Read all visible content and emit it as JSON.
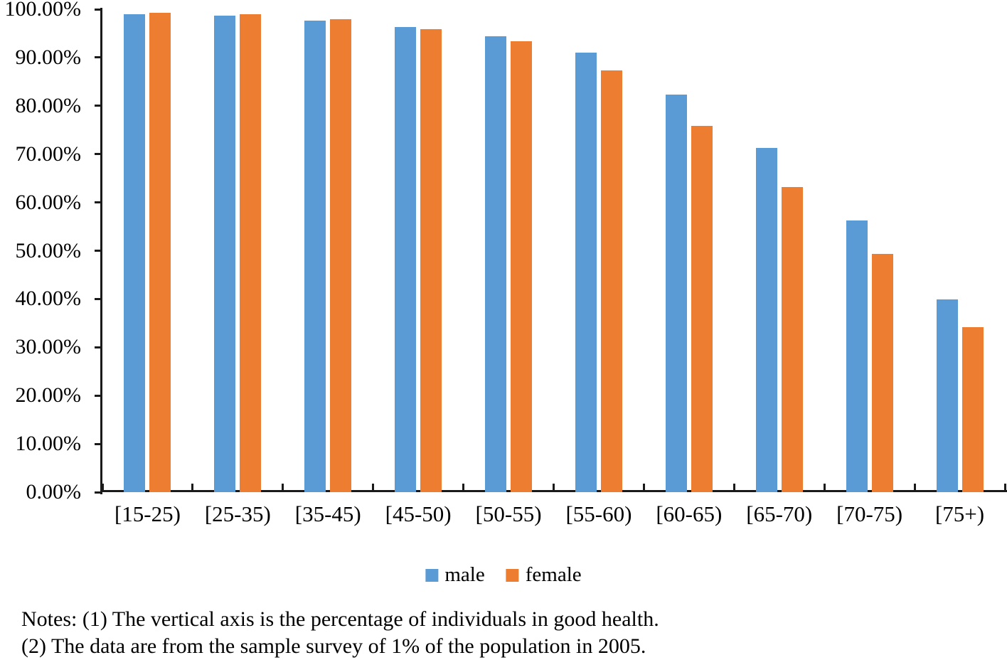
{
  "figure": {
    "notes_line1": "Notes: (1) The vertical axis is the percentage of individuals in good health.",
    "notes_line2": "(2) The data are from the sample survey of 1% of the population in 2005."
  },
  "chart_data": {
    "type": "bar",
    "title": "",
    "xlabel": "",
    "ylabel": "percentage of individuals in good health",
    "categories": [
      "[15-25)",
      "[25-35)",
      "[35-45)",
      "[45-50)",
      "[50-55)",
      "[55-60)",
      "[60-65)",
      "[65-70)",
      "[70-75)",
      "[75+)"
    ],
    "series": [
      {
        "name": "male",
        "color": "#5B9BD5",
        "values": [
          99.0,
          98.7,
          97.7,
          96.3,
          94.4,
          91.0,
          82.4,
          71.3,
          56.2,
          39.9
        ]
      },
      {
        "name": "female",
        "color": "#ED7D31",
        "values": [
          99.3,
          98.9,
          97.9,
          95.9,
          93.4,
          87.3,
          75.9,
          63.2,
          49.4,
          34.2
        ]
      }
    ],
    "y_tick_labels": [
      "0.00%",
      "10.00%",
      "20.00%",
      "30.00%",
      "40.00%",
      "50.00%",
      "60.00%",
      "70.00%",
      "80.00%",
      "90.00%",
      "100.00%"
    ],
    "ylim": [
      0,
      100
    ],
    "grid": false,
    "legend_position": "bottom",
    "axis_color": "#1a1a1a"
  }
}
